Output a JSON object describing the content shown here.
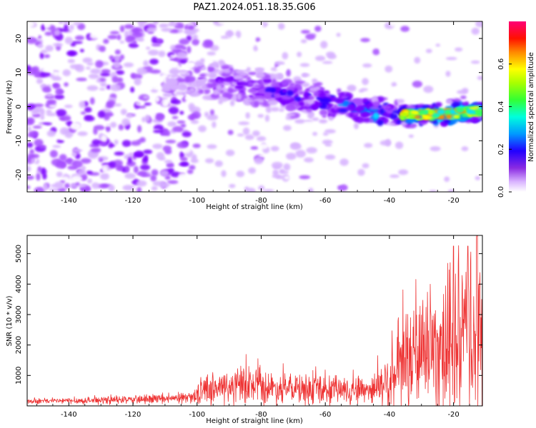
{
  "title": "PAZ1.2024.051.18.35.G06",
  "chart_data": [
    {
      "type": "heatmap",
      "xlabel": "Height of straight line (km)",
      "ylabel": "Frequency (Hz)",
      "xlim": [
        -153,
        -11
      ],
      "ylim": [
        -25,
        25
      ],
      "x_ticks": [
        -140,
        -120,
        -100,
        -80,
        -60,
        -40,
        -20
      ],
      "y_ticks": [
        -20,
        -10,
        0,
        10,
        20
      ],
      "colorbar": {
        "label": "Normalized spectral amplitude",
        "range": [
          0,
          0.8
        ],
        "ticks": [
          "0.0",
          "0.2",
          "0.4",
          "0.6"
        ],
        "colors": [
          "#ffffff",
          "#cc99ff",
          "#7700ff",
          "#0000ff",
          "#00aaff",
          "#00ffcc",
          "#44ff00",
          "#ffff00",
          "#ff8800",
          "#ff0000",
          "#ff0066"
        ]
      },
      "ridge": {
        "description_points_x": [
          -110,
          -100,
          -80,
          -60,
          -40,
          -20,
          -11
        ],
        "frequency_hz": [
          7,
          8,
          5,
          1.5,
          -2.5,
          -2,
          -1
        ],
        "amplitude": [
          0.05,
          0.12,
          0.16,
          0.2,
          0.3,
          0.45,
          0.35
        ]
      }
    },
    {
      "type": "line",
      "xlabel": "Height of straight line (km)",
      "ylabel": "SNR (10 * v/v)",
      "xlim": [
        -153,
        -11
      ],
      "ylim": [
        0,
        5600
      ],
      "x_ticks": [
        -140,
        -120,
        -100,
        -80,
        -60,
        -40,
        -20
      ],
      "y_ticks": [
        1000,
        2000,
        3000,
        4000,
        5000
      ],
      "color": "#ee3333",
      "envelope": {
        "x": [
          -153,
          -130,
          -110,
          -102,
          -98,
          -85,
          -75,
          -60,
          -45,
          -40,
          -35,
          -30,
          -25,
          -20,
          -15,
          -12,
          -11
        ],
        "baseline": [
          150,
          180,
          220,
          260,
          550,
          650,
          580,
          500,
          560,
          800,
          1400,
          1800,
          2000,
          1900,
          2300,
          2500,
          1800
        ],
        "peak_amplitude": [
          80,
          120,
          150,
          170,
          500,
          700,
          500,
          500,
          500,
          1200,
          1700,
          2200,
          2300,
          2600,
          2900,
          3000,
          2200
        ]
      },
      "highlights": [
        {
          "x": -20,
          "y": 5250
        },
        {
          "x": -15.5,
          "y": 5250
        },
        {
          "x": -12.7,
          "y": 5600
        }
      ]
    }
  ]
}
